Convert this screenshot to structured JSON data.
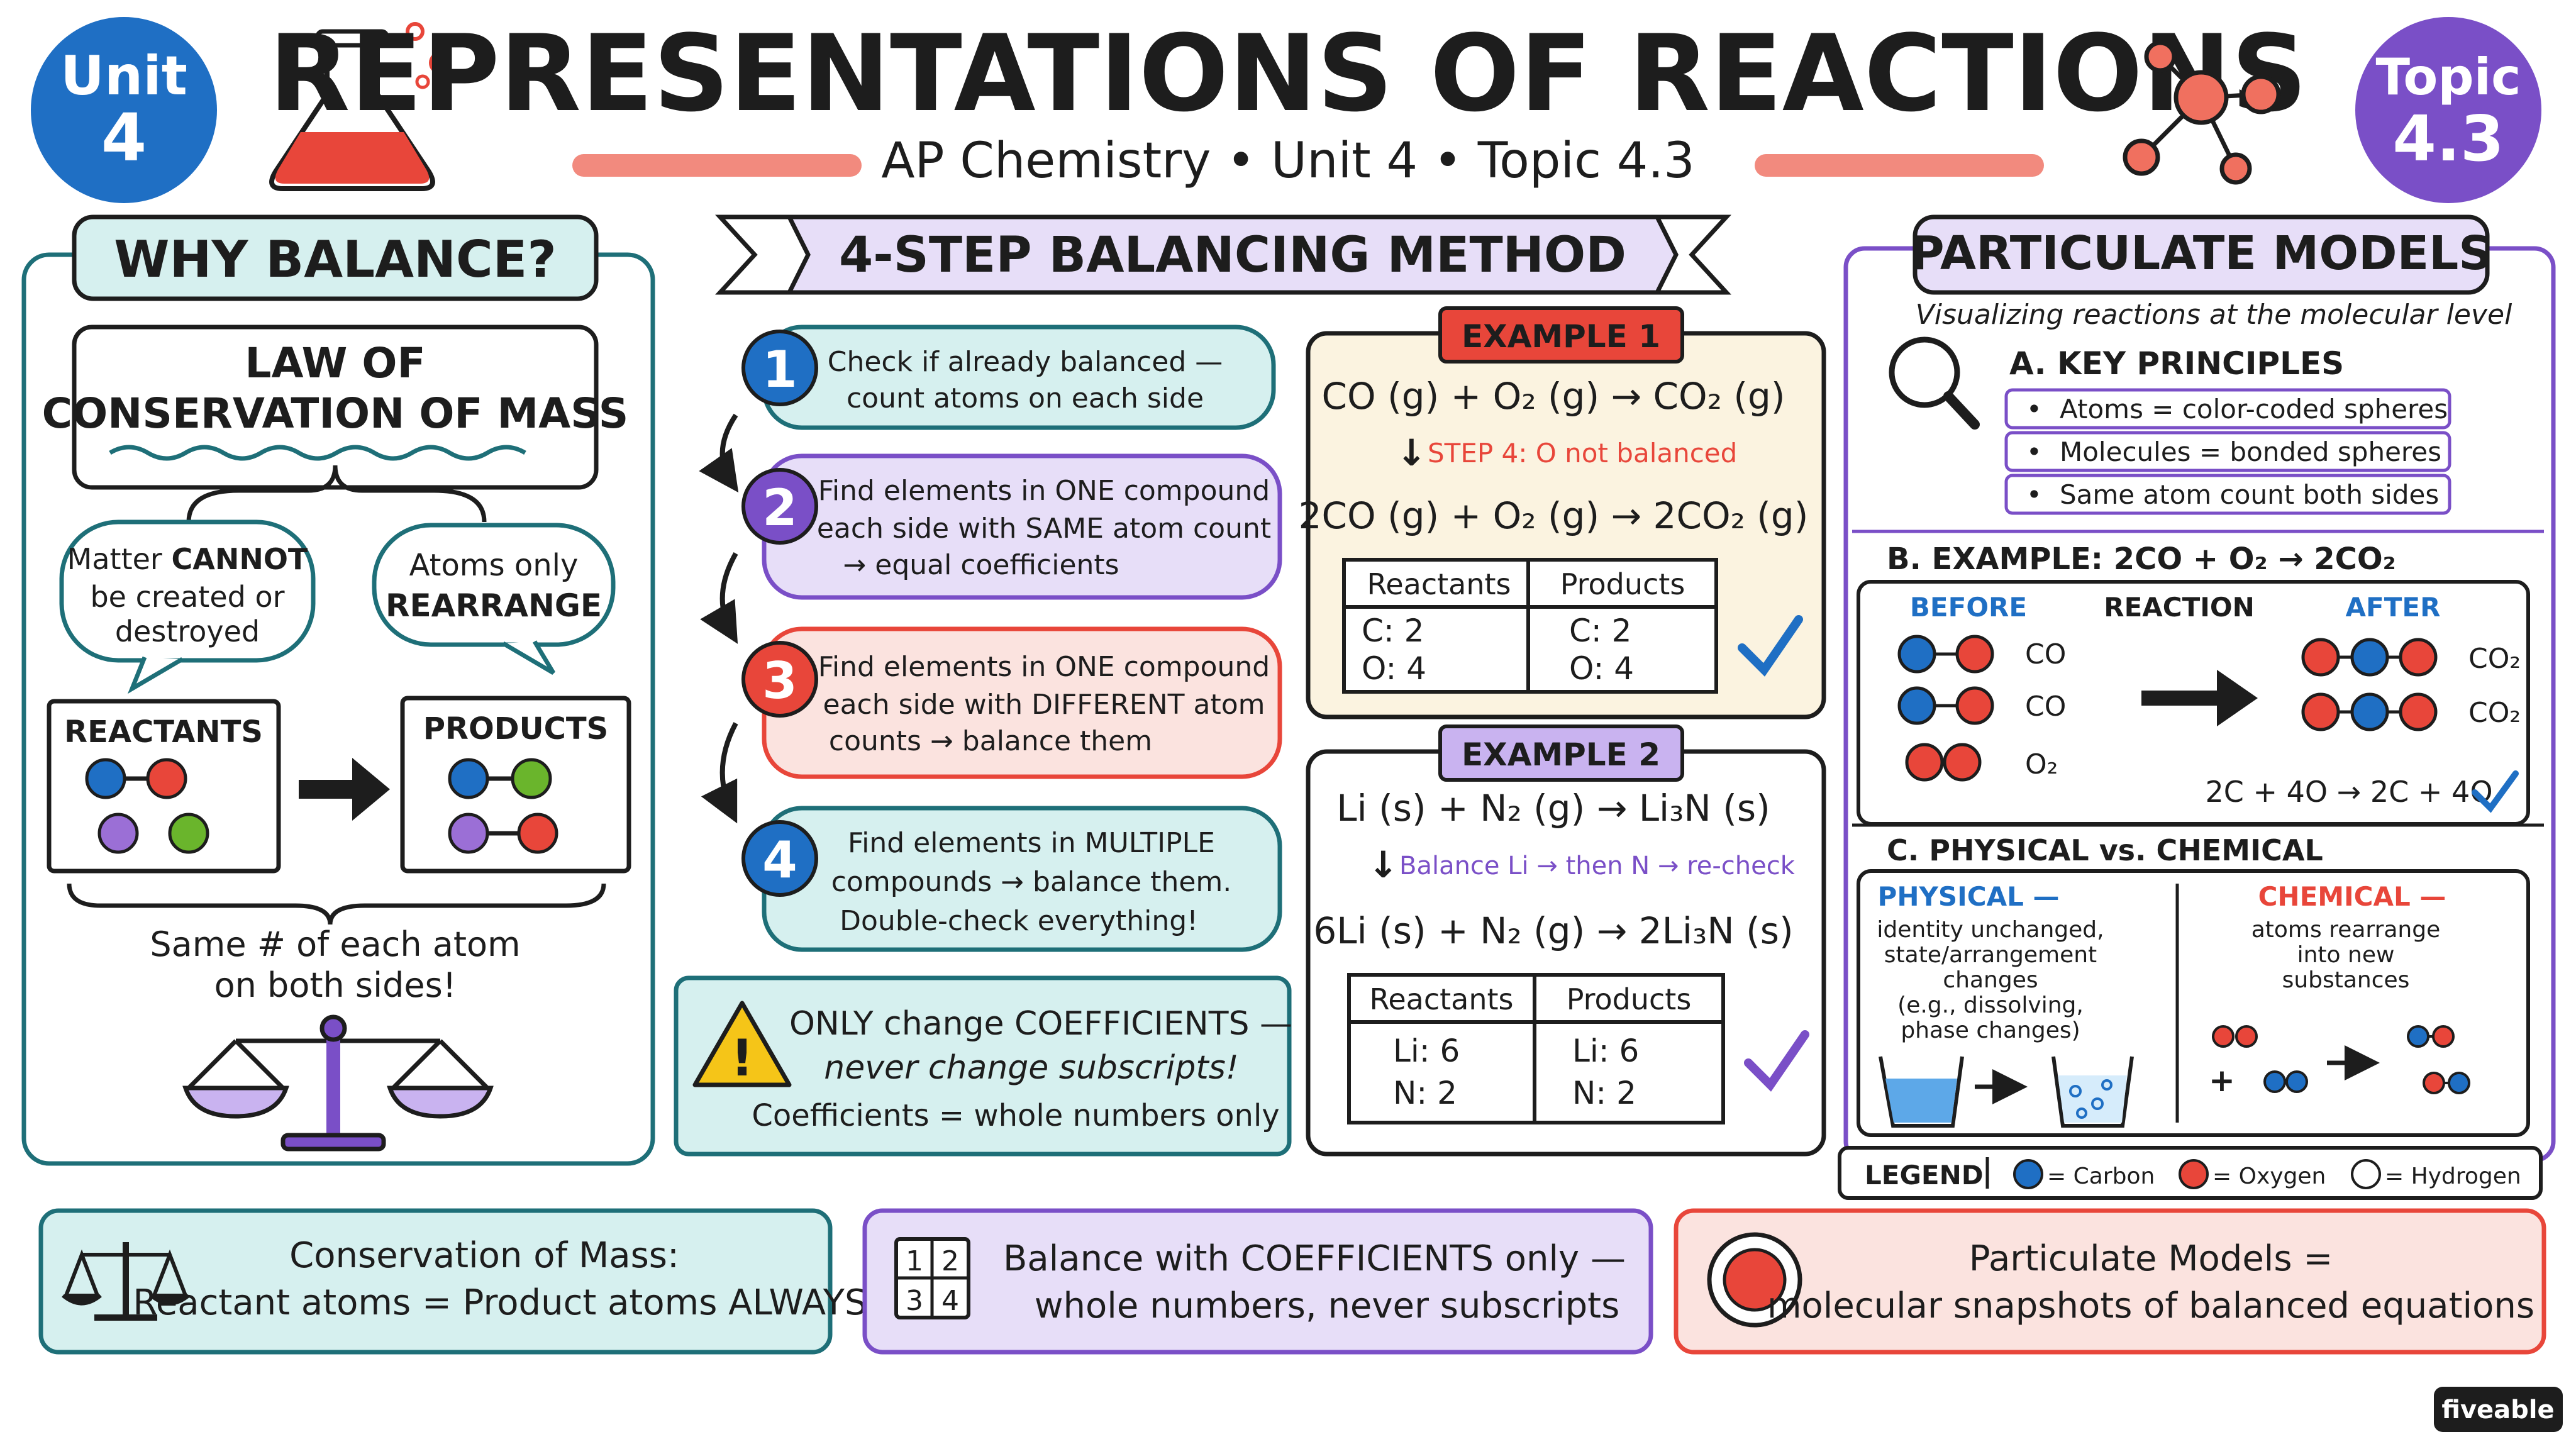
{
  "header": {
    "unit_badge": [
      "Unit",
      "4"
    ],
    "topic_badge": [
      "Topic",
      "4.3"
    ],
    "title": "REPRESENTATIONS OF REACTIONS",
    "subtitle": "AP Chemistry • Unit 4 • Topic 4.3"
  },
  "why": {
    "title": "WHY BALANCE?",
    "law": [
      "LAW OF",
      "CONSERVATION OF MASS"
    ],
    "bubble1": {
      "pre": "Matter ",
      "bold": "CANNOT",
      "lines": [
        "be created or",
        "destroyed"
      ]
    },
    "bubble2": {
      "line1": "Atoms only",
      "bold": "REARRANGE"
    },
    "reactants": "REACTANTS",
    "products": "PRODUCTS",
    "footer": [
      "Same # of each atom",
      "on both sides!"
    ]
  },
  "steps": {
    "title": "4-STEP BALANCING METHOD",
    "items": [
      {
        "num": "1",
        "lines": [
          "Check if already balanced —",
          "count atoms on each side"
        ]
      },
      {
        "num": "2",
        "lines": [
          "Find elements in ONE compound",
          "each side with SAME atom count",
          "→ equal coefficients"
        ]
      },
      {
        "num": "3",
        "lines": [
          "Find elements in ONE compound",
          "each side with DIFFERENT atom",
          "counts → balance them"
        ]
      },
      {
        "num": "4",
        "lines": [
          "Find elements in MULTIPLE",
          "compounds → balance them.",
          "Double-check everything!"
        ]
      }
    ],
    "warning": [
      "ONLY change COEFFICIENTS —",
      "never change subscripts!",
      "Coefficients = whole numbers only"
    ]
  },
  "examples": [
    {
      "label": "EXAMPLE 1",
      "unbalanced": "CO (g) + O₂ (g) → CO₂ (g)",
      "step_note": "STEP 4: O not balanced",
      "balanced": "2CO (g) + O₂ (g) → 2CO₂ (g)",
      "table": {
        "headers": [
          "Reactants",
          "Products"
        ],
        "reactants": [
          "C: 2",
          "O: 4"
        ],
        "products": [
          "C: 2",
          "O: 4"
        ]
      }
    },
    {
      "label": "EXAMPLE 2",
      "unbalanced": "Li (s) + N₂ (g) → Li₃N (s)",
      "step_note": "Balance Li → then N → re-check",
      "balanced": "6Li (s) + N₂ (g) → 2Li₃N (s)",
      "table": {
        "headers": [
          "Reactants",
          "Products"
        ],
        "reactants": [
          "Li: 6",
          "N: 2"
        ],
        "products": [
          "Li: 6",
          "N: 2"
        ]
      }
    }
  ],
  "particulate": {
    "title": "PARTICULATE MODELS",
    "subtitle": "Visualizing reactions at the molecular level",
    "key_title": "A. KEY PRINCIPLES",
    "principles": [
      "Atoms = color-coded spheres",
      "Molecules = bonded spheres",
      "Same atom count both sides"
    ],
    "example_title": "B. EXAMPLE: 2CO + O₂ → 2CO₂",
    "before": "BEFORE",
    "reaction": "REACTION",
    "after": "AFTER",
    "before_labels": [
      "CO",
      "CO",
      "O₂"
    ],
    "after_labels": [
      "CO₂",
      "CO₂"
    ],
    "count": "2C + 4O → 2C + 4O",
    "phys_chem_title": "C. PHYSICAL vs. CHEMICAL",
    "physical": {
      "label": "PHYSICAL —",
      "lines": [
        "identity unchanged,",
        "state/arrangement",
        "changes",
        "(e.g., dissolving,",
        "phase changes)"
      ]
    },
    "chemical": {
      "label": "CHEMICAL —",
      "lines": [
        "atoms rearrange",
        "into new",
        "substances"
      ]
    },
    "legend": {
      "label": "LEGEND",
      "items": [
        "= Carbon",
        "= Oxygen",
        "= Hydrogen"
      ]
    }
  },
  "bottom": [
    {
      "lines": [
        "Conservation of Mass:",
        "Reactant atoms = Product atoms ALWAYS"
      ]
    },
    {
      "lines": [
        "Balance with COEFFICIENTS only —",
        "whole numbers, never subscripts"
      ],
      "icon_digits": [
        "1",
        "2",
        "3",
        "4"
      ]
    },
    {
      "lines": [
        "Particulate Models =",
        "molecular snapshots of balanced equations"
      ]
    }
  ],
  "brand": "fiveable",
  "colors": {
    "teal": "#1e6f78",
    "tealFill": "#d6f0ef",
    "purple": "#7a4fc7",
    "purpleFill": "#e7def8",
    "red": "#e8463a",
    "redFill": "#fbe3df",
    "blue": "#1f6fc4",
    "green": "#6ab52c",
    "cream": "#fbf3e0"
  }
}
